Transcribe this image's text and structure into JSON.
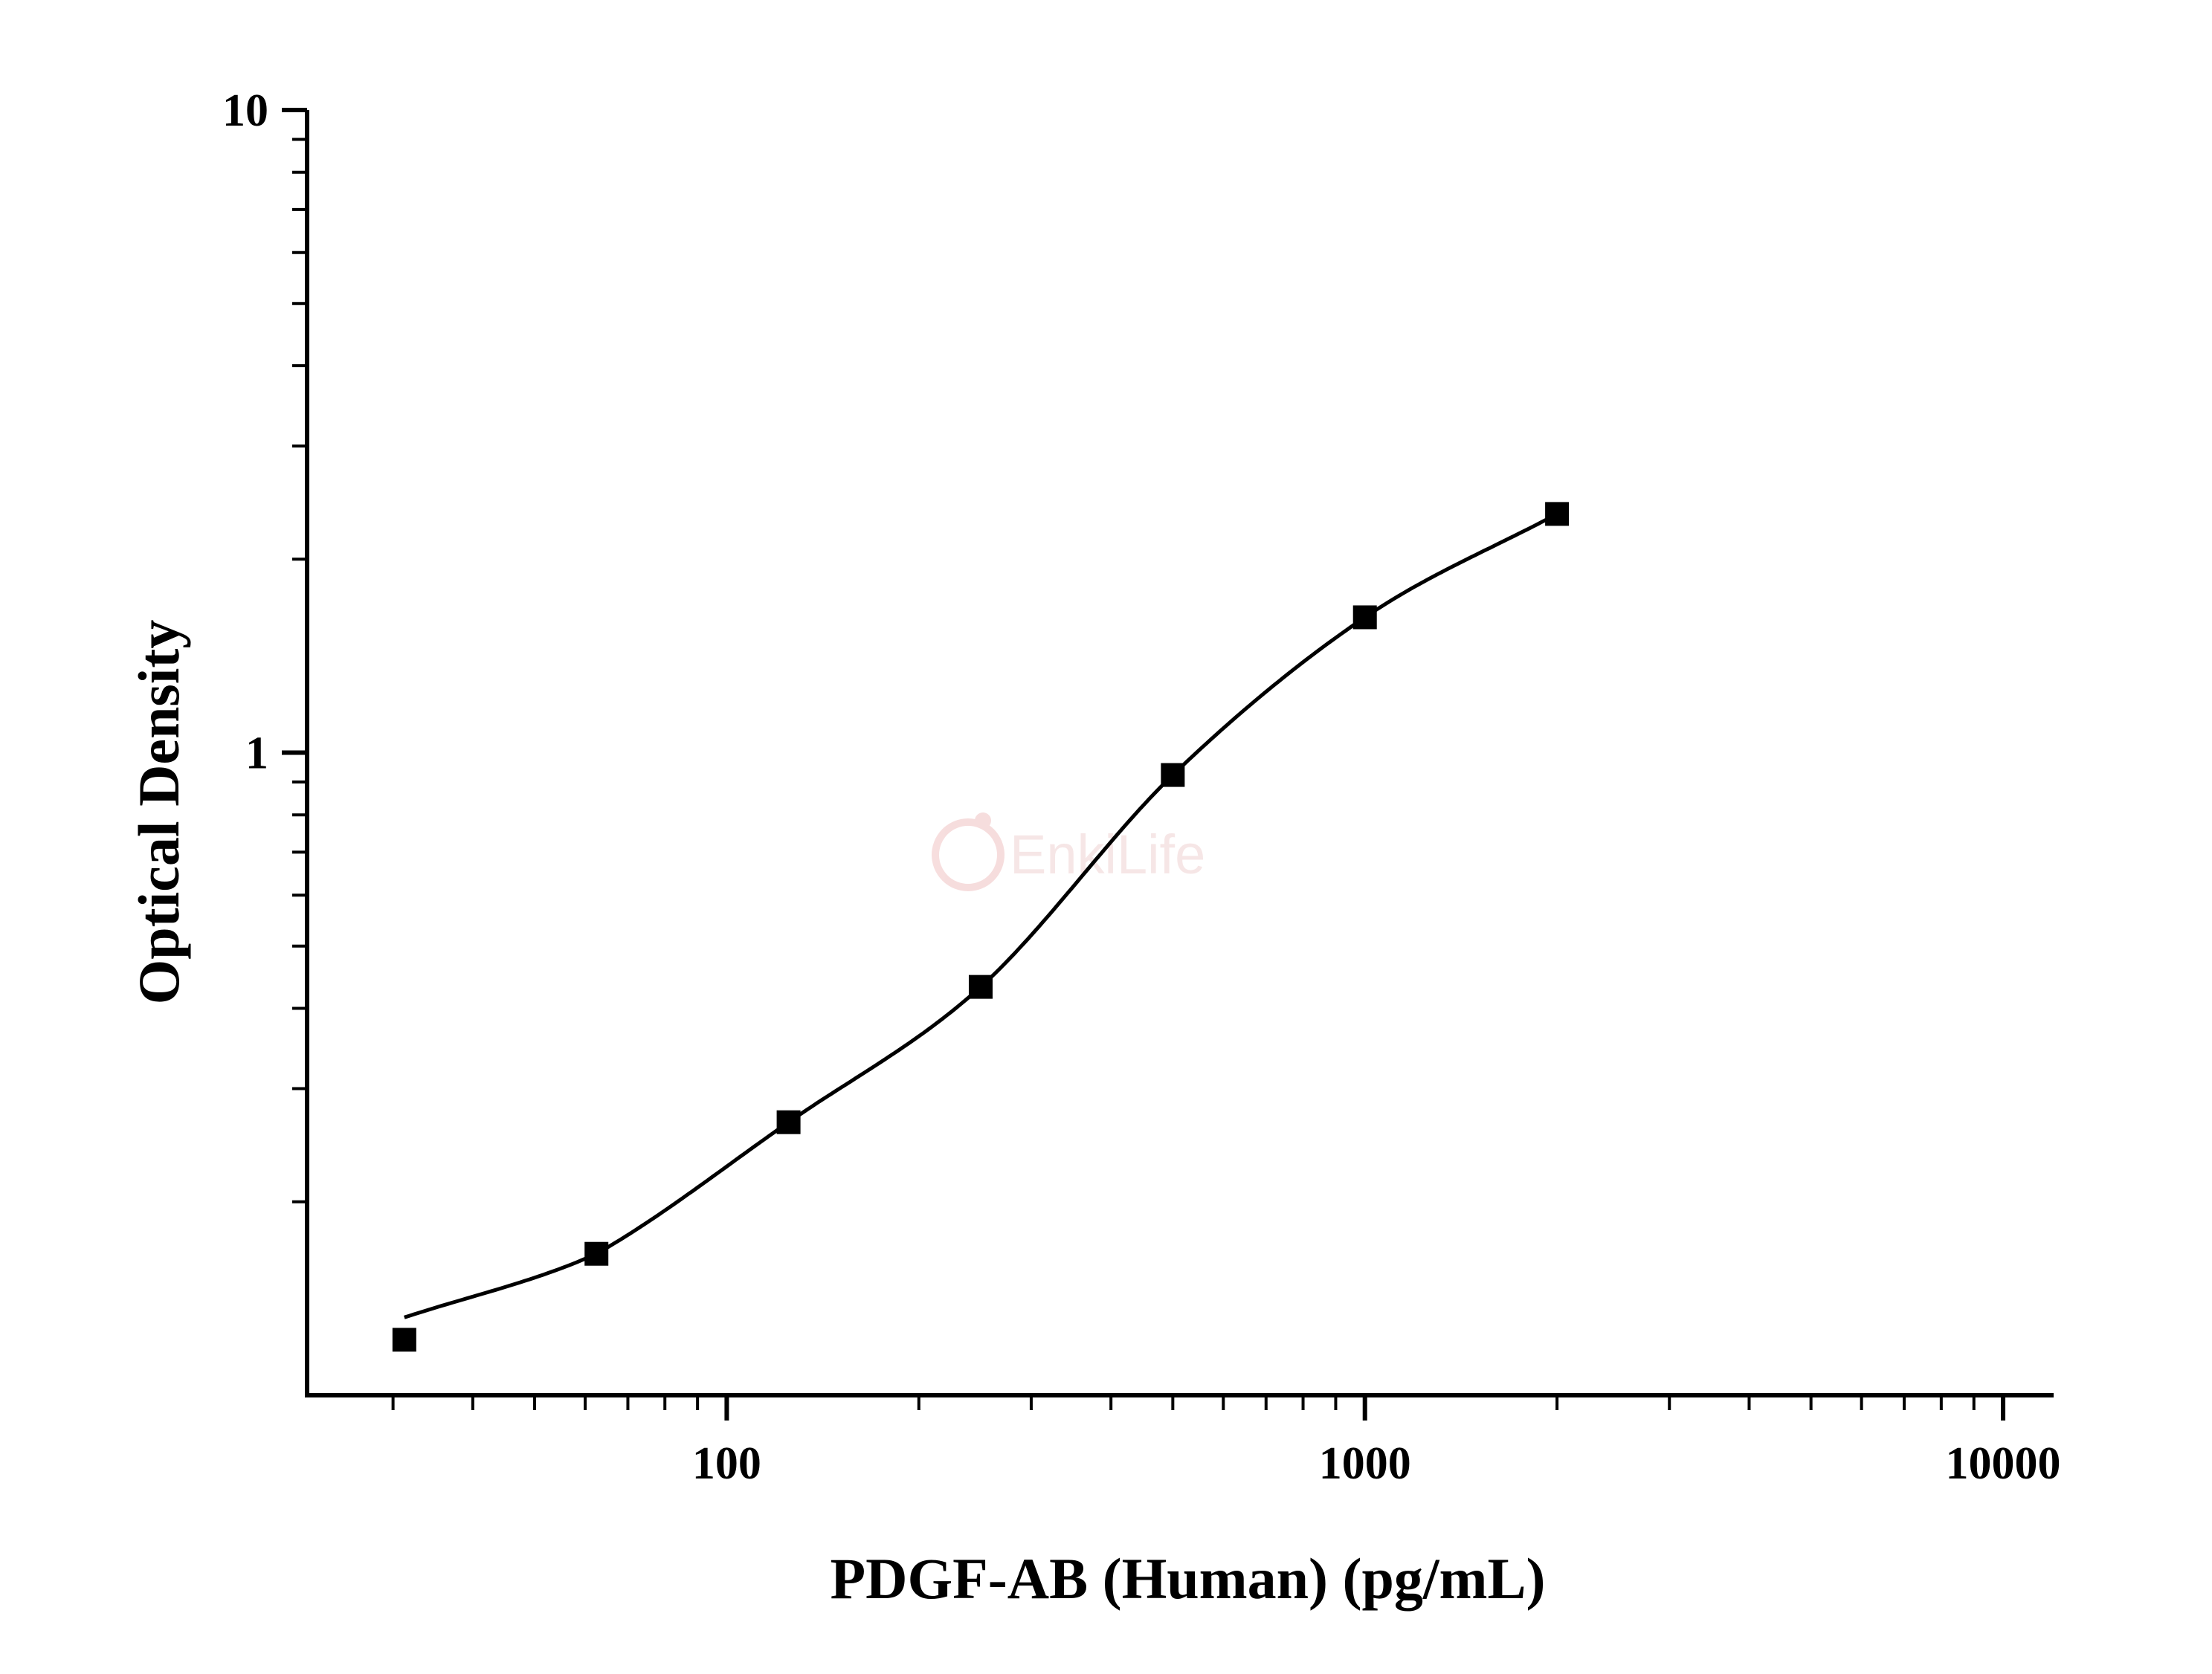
{
  "chart_data": {
    "type": "scatter",
    "xlabel": "PDGF-AB (Human) (pg/mL)",
    "ylabel": "Optical Density",
    "x_scale": "log",
    "y_scale": "log",
    "xlim": [
      22,
      12000
    ],
    "ylim": [
      0.1,
      10
    ],
    "x_major_ticks": [
      100,
      1000,
      10000
    ],
    "x_tick_labels": [
      "100",
      "1000",
      "10000"
    ],
    "y_major_ticks": [
      1,
      10
    ],
    "y_tick_labels": [
      "1",
      "10"
    ],
    "grid": false,
    "legend": "none",
    "marker": "square",
    "fit_curve": true,
    "series": [
      {
        "x": [
          31.25,
          62.5,
          125,
          250,
          500,
          1000,
          2000
        ],
        "y": [
          0.122,
          0.166,
          0.266,
          0.432,
          0.923,
          1.624,
          2.352
        ]
      }
    ],
    "colors": {
      "marker": "#000000",
      "curve": "#000000",
      "axis": "#000000",
      "watermark": "#f6e4e4"
    }
  },
  "watermark": {
    "text": "EnkiLife"
  }
}
